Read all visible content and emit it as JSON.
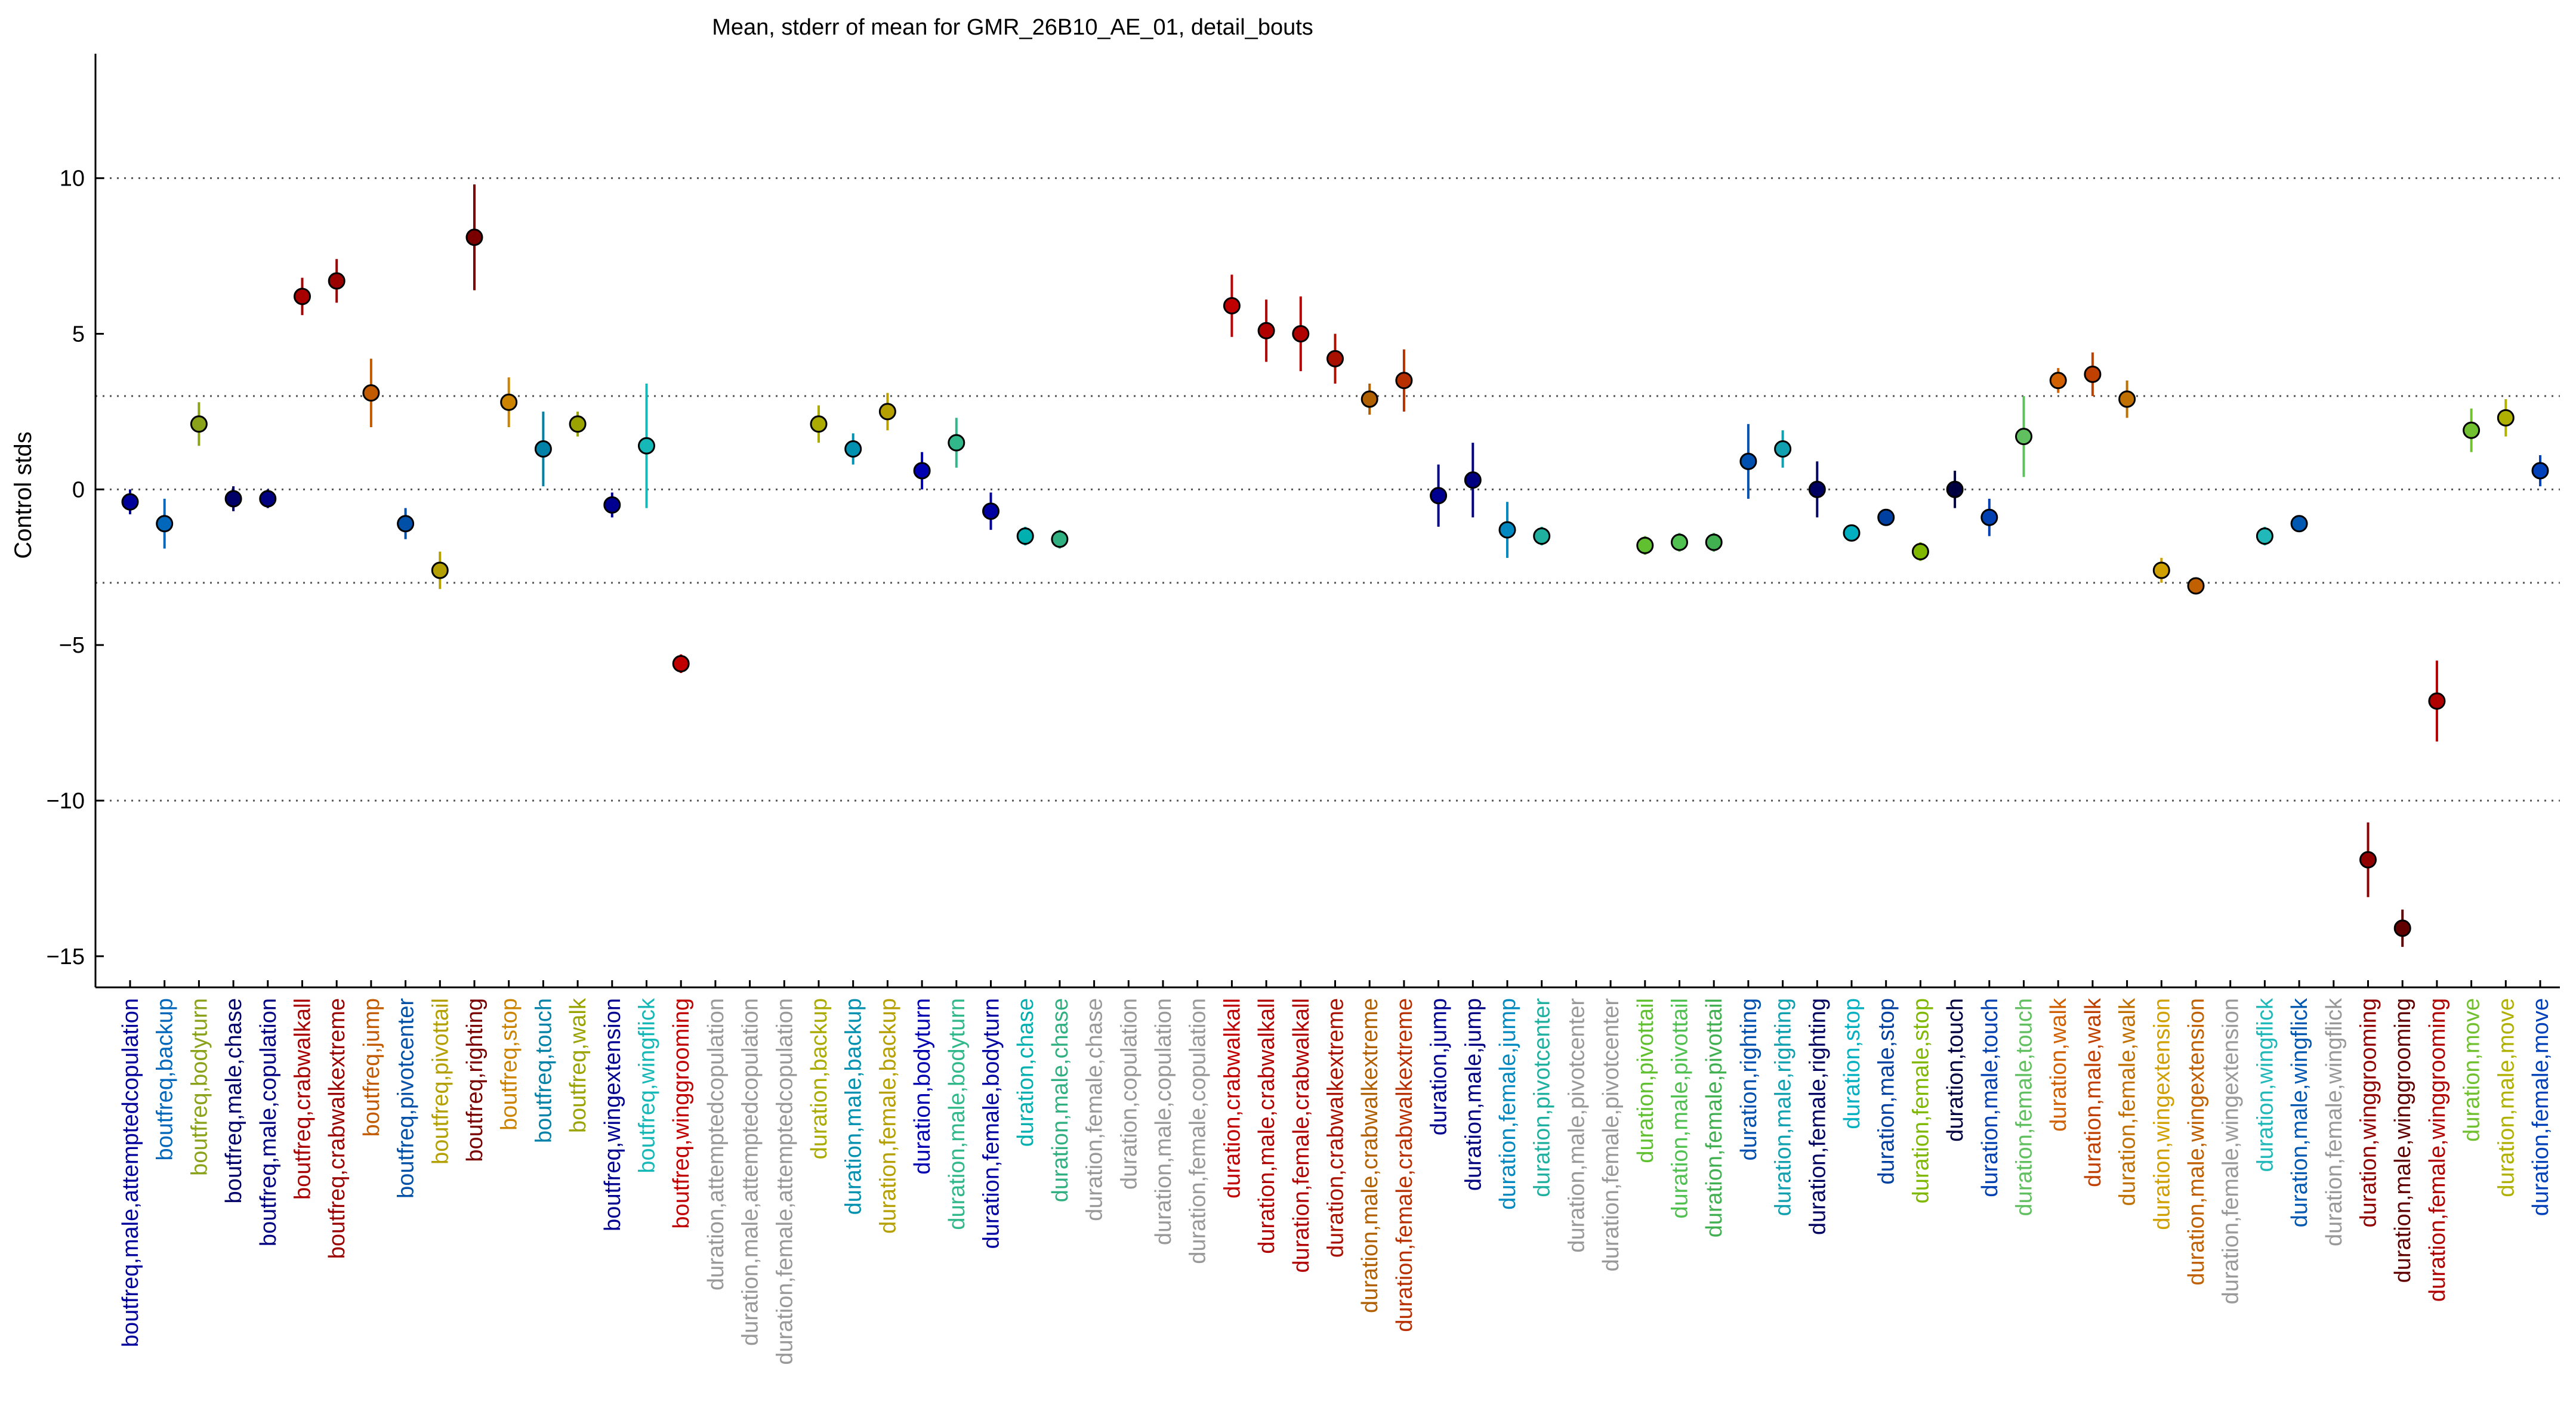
{
  "chart_data": {
    "type": "scatter",
    "title": "Mean, stderr of mean for GMR_26B10_AE_01, detail_bouts",
    "ylabel": "Control stds",
    "xlabel": "",
    "ylim": [
      -16,
      14
    ],
    "yticks": [
      -15,
      -10,
      -5,
      0,
      5,
      10
    ],
    "reference_lines": [
      -10,
      -3,
      0,
      3,
      10
    ],
    "grid": false,
    "categories": [
      {
        "label": "boutfreq,male,attemptedcopulation",
        "color": "#00009b"
      },
      {
        "label": "boutfreq,backup",
        "color": "#0067bb"
      },
      {
        "label": "boutfreq,bodyturn",
        "color": "#8aa21a"
      },
      {
        "label": "boutfreq,male,chase",
        "color": "#000068"
      },
      {
        "label": "boutfreq,male,copulation",
        "color": "#000080"
      },
      {
        "label": "boutfreq,crabwalkall",
        "color": "#a80000"
      },
      {
        "label": "boutfreq,crabwalkextreme",
        "color": "#9b0000"
      },
      {
        "label": "boutfreq,jump",
        "color": "#c25a00"
      },
      {
        "label": "boutfreq,pivotcenter",
        "color": "#0050a8"
      },
      {
        "label": "boutfreq,pivottail",
        "color": "#b3a000"
      },
      {
        "label": "boutfreq,righting",
        "color": "#7a0000"
      },
      {
        "label": "boutfreq,stop",
        "color": "#cc8400"
      },
      {
        "label": "boutfreq,touch",
        "color": "#0082a8"
      },
      {
        "label": "boutfreq,walk",
        "color": "#9aa300"
      },
      {
        "label": "boutfreq,wingextension",
        "color": "#000090"
      },
      {
        "label": "boutfreq,wingflick",
        "color": "#16b7b7"
      },
      {
        "label": "boutfreq,winggrooming",
        "color": "#c00000"
      },
      {
        "label": "duration,attemptedcopulation",
        "color": "#999999"
      },
      {
        "label": "duration,male,attemptedcopulation",
        "color": "#999999"
      },
      {
        "label": "duration,female,attemptedcopulation",
        "color": "#999999"
      },
      {
        "label": "duration,backup",
        "color": "#aaaa00"
      },
      {
        "label": "duration,male,backup",
        "color": "#0090b0"
      },
      {
        "label": "duration,female,backup",
        "color": "#b5a000"
      },
      {
        "label": "duration,bodyturn",
        "color": "#0000b0"
      },
      {
        "label": "duration,male,bodyturn",
        "color": "#30b88a"
      },
      {
        "label": "duration,female,bodyturn",
        "color": "#0000a0"
      },
      {
        "label": "duration,chase",
        "color": "#00b0b0"
      },
      {
        "label": "duration,male,chase",
        "color": "#30b080"
      },
      {
        "label": "duration,female,chase",
        "color": "#999999"
      },
      {
        "label": "duration,copulation",
        "color": "#999999"
      },
      {
        "label": "duration,male,copulation",
        "color": "#999999"
      },
      {
        "label": "duration,female,copulation",
        "color": "#999999"
      },
      {
        "label": "duration,crabwalkall",
        "color": "#c00000"
      },
      {
        "label": "duration,male,crabwalkall",
        "color": "#b00000"
      },
      {
        "label": "duration,female,crabwalkall",
        "color": "#b00000"
      },
      {
        "label": "duration,crabwalkextreme",
        "color": "#a81000"
      },
      {
        "label": "duration,male,crabwalkextreme",
        "color": "#b06000"
      },
      {
        "label": "duration,female,crabwalkextreme",
        "color": "#b83000"
      },
      {
        "label": "duration,jump",
        "color": "#000090"
      },
      {
        "label": "duration,male,jump",
        "color": "#000080"
      },
      {
        "label": "duration,female,jump",
        "color": "#0088c0"
      },
      {
        "label": "duration,pivotcenter",
        "color": "#20b0a0"
      },
      {
        "label": "duration,male,pivotcenter",
        "color": "#999999"
      },
      {
        "label": "duration,female,pivotcenter",
        "color": "#999999"
      },
      {
        "label": "duration,pivottail",
        "color": "#60c030"
      },
      {
        "label": "duration,male,pivottail",
        "color": "#50c050"
      },
      {
        "label": "duration,female,pivottail",
        "color": "#40b050"
      },
      {
        "label": "duration,righting",
        "color": "#0050b0"
      },
      {
        "label": "duration,male,righting",
        "color": "#10a0b0"
      },
      {
        "label": "duration,female,righting",
        "color": "#000060"
      },
      {
        "label": "duration,stop",
        "color": "#00b0c0"
      },
      {
        "label": "duration,male,stop",
        "color": "#0040a0"
      },
      {
        "label": "duration,female,stop",
        "color": "#80b800"
      },
      {
        "label": "duration,touch",
        "color": "#000040"
      },
      {
        "label": "duration,male,touch",
        "color": "#0040b0"
      },
      {
        "label": "duration,female,touch",
        "color": "#60c060"
      },
      {
        "label": "duration,walk",
        "color": "#d06000"
      },
      {
        "label": "duration,male,walk",
        "color": "#c04000"
      },
      {
        "label": "duration,female,walk",
        "color": "#c07000"
      },
      {
        "label": "duration,wingextension",
        "color": "#d0a000"
      },
      {
        "label": "duration,male,wingextension",
        "color": "#c06000"
      },
      {
        "label": "duration,female,wingextension",
        "color": "#999999"
      },
      {
        "label": "duration,wingflick",
        "color": "#20b8b8"
      },
      {
        "label": "duration,male,wingflick",
        "color": "#0058b0"
      },
      {
        "label": "duration,female,wingflick",
        "color": "#999999"
      },
      {
        "label": "duration,winggrooming",
        "color": "#900000"
      },
      {
        "label": "duration,male,winggrooming",
        "color": "#600000"
      },
      {
        "label": "duration,female,winggrooming",
        "color": "#b00000"
      },
      {
        "label": "duration,move",
        "color": "#70c030"
      },
      {
        "label": "duration,male,move",
        "color": "#b0b000"
      },
      {
        "label": "duration,female,move",
        "color": "#0040b8"
      }
    ],
    "means": [
      -0.4,
      -1.1,
      2.1,
      -0.3,
      -0.3,
      6.2,
      6.7,
      3.1,
      -1.1,
      -2.6,
      8.1,
      2.8,
      1.3,
      2.1,
      -0.5,
      1.4,
      -5.6,
      null,
      null,
      null,
      2.1,
      1.3,
      2.5,
      0.6,
      1.5,
      -0.7,
      -1.5,
      -1.6,
      null,
      null,
      null,
      null,
      5.9,
      5.1,
      5.0,
      4.2,
      2.9,
      3.5,
      -0.2,
      0.3,
      -1.3,
      -1.5,
      null,
      null,
      -1.8,
      -1.7,
      -1.7,
      0.9,
      1.3,
      0.0,
      -1.4,
      -0.9,
      -2.0,
      0.0,
      -0.9,
      1.7,
      3.5,
      3.7,
      2.9,
      -2.6,
      -3.1,
      null,
      -1.5,
      -1.1,
      null,
      -11.9,
      -14.1,
      -6.8,
      1.9,
      2.3,
      0.6
    ],
    "stderr": [
      0.4,
      0.8,
      0.7,
      0.4,
      0.3,
      0.6,
      0.7,
      1.1,
      0.5,
      0.6,
      1.7,
      0.8,
      1.2,
      0.4,
      0.4,
      2.0,
      0.3,
      null,
      null,
      null,
      0.6,
      0.5,
      0.6,
      0.6,
      0.8,
      0.6,
      0.3,
      0.3,
      null,
      null,
      null,
      null,
      1.0,
      1.0,
      1.2,
      0.8,
      0.5,
      1.0,
      1.0,
      1.2,
      0.9,
      0.3,
      null,
      null,
      0.3,
      0.3,
      0.3,
      1.2,
      0.6,
      0.9,
      0.2,
      0.1,
      0.3,
      0.6,
      0.6,
      1.3,
      0.4,
      0.7,
      0.6,
      0.4,
      0.1,
      null,
      0.3,
      0.1,
      null,
      1.2,
      0.6,
      1.3,
      0.7,
      0.6,
      0.5
    ]
  }
}
